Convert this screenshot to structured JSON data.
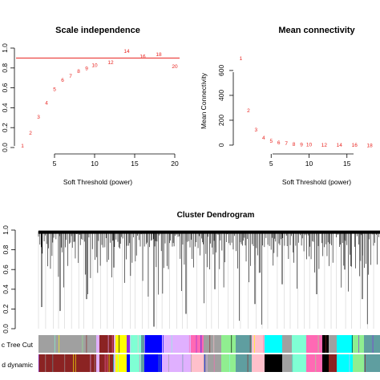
{
  "chart_data": [
    {
      "type": "scatter",
      "title": "Scale independence",
      "xlabel": "Soft Threshold (power)",
      "ylabel": "",
      "xlim": [
        0,
        21
      ],
      "ylim": [
        0,
        1
      ],
      "xticks": [
        "5",
        "10",
        "15",
        "20"
      ],
      "yticks": [
        "0.0",
        "0.2",
        "0.4",
        "0.6",
        "0.8",
        "1.0"
      ],
      "point_labels": [
        "1",
        "2",
        "3",
        "4",
        "5",
        "6",
        "7",
        "8",
        "9",
        "10",
        "12",
        "14",
        "16",
        "18",
        "20"
      ],
      "x": [
        1,
        2,
        3,
        4,
        5,
        6,
        7,
        8,
        9,
        10,
        12,
        14,
        16,
        18,
        20
      ],
      "y": [
        0.02,
        0.15,
        0.31,
        0.45,
        0.59,
        0.68,
        0.72,
        0.77,
        0.8,
        0.83,
        0.86,
        0.97,
        0.92,
        0.94,
        0.82
      ],
      "hline": 0.9,
      "point_color": "#e8231f",
      "line_color": "#e8231f"
    },
    {
      "type": "scatter",
      "title": "Mean connectivity",
      "xlabel": "Soft Threshold (power)",
      "ylabel": "Mean Connectivity",
      "xlim": [
        0,
        20
      ],
      "ylim": [
        0,
        780
      ],
      "xticks": [
        "5",
        "10",
        "15"
      ],
      "yticks": [
        "0",
        "200",
        "400",
        "600"
      ],
      "point_labels": [
        "1",
        "2",
        "3",
        "4",
        "5",
        "6",
        "7",
        "8",
        "9",
        "10",
        "12",
        "14",
        "16",
        "18"
      ],
      "x": [
        1,
        2,
        3,
        4,
        5,
        6,
        7,
        8,
        9,
        10,
        12,
        14,
        16,
        18
      ],
      "y": [
        700,
        280,
        125,
        60,
        35,
        22,
        15,
        10,
        8,
        6,
        4,
        3,
        2,
        1
      ],
      "point_color": "#e8231f"
    },
    {
      "type": "dendrogram",
      "title": "Cluster Dendrogram",
      "ylim": [
        0,
        1
      ],
      "yticks": [
        "0.0",
        "0.2",
        "0.4",
        "0.6",
        "0.8",
        "1.0"
      ],
      "color_bar_labels": [
        "c Tree Cut",
        "d dynamic"
      ],
      "module_colors": [
        "#a0a0a0",
        "#8b2323",
        "#ffff00",
        "#8a2be2",
        "#0000ff",
        "#5f9ea0",
        "#e0b0ff",
        "#00ffff",
        "#000000",
        "#90ee90",
        "#ff69b4",
        "#ffc0cb",
        "#7fffd4"
      ]
    }
  ]
}
